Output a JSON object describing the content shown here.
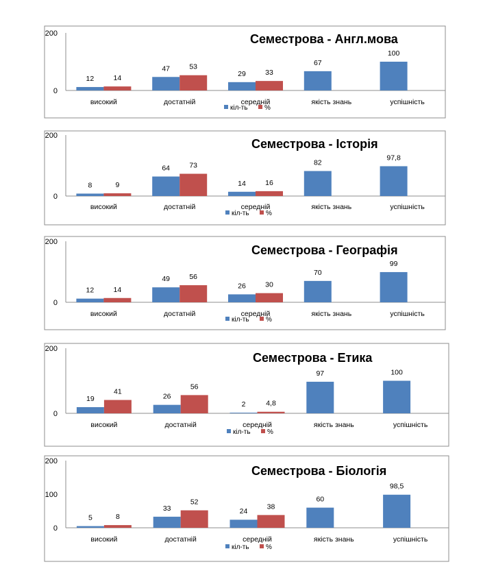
{
  "legend": {
    "series": [
      "кіл-ть",
      "%"
    ]
  },
  "colors": {
    "series": [
      "#4F81BD",
      "#C0504D"
    ]
  },
  "chart_data": [
    {
      "type": "bar",
      "title": "Семестрова  - Англ.мова",
      "categories": [
        "високий",
        "достатній",
        "середній",
        "якість знань",
        "успішність"
      ],
      "series": [
        {
          "name": "кіл-ть",
          "values": [
            12,
            47,
            29,
            67,
            100
          ],
          "labels": [
            "12",
            "47",
            "29",
            "67",
            "100"
          ]
        },
        {
          "name": "%",
          "values": [
            14,
            53,
            33,
            null,
            null
          ],
          "labels": [
            "14",
            "53",
            "33",
            null,
            null
          ]
        }
      ],
      "ylim": [
        0,
        200
      ],
      "yticks": [
        "0",
        "200"
      ]
    },
    {
      "type": "bar",
      "title": "Семестрова  - Історія",
      "categories": [
        "високий",
        "достатній",
        "середній",
        "якість знань",
        "успішність"
      ],
      "series": [
        {
          "name": "кіл-ть",
          "values": [
            8,
            64,
            14,
            82,
            97.8
          ],
          "labels": [
            "8",
            "64",
            "14",
            "82",
            "97,8"
          ]
        },
        {
          "name": "%",
          "values": [
            9,
            73,
            16,
            null,
            null
          ],
          "labels": [
            "9",
            "73",
            "16",
            null,
            null
          ]
        }
      ],
      "ylim": [
        0,
        200
      ],
      "yticks": [
        "0",
        "200"
      ]
    },
    {
      "type": "bar",
      "title": "Семестрова  - Географія",
      "categories": [
        "високий",
        "достатній",
        "середній",
        "якість знань",
        "успішність"
      ],
      "series": [
        {
          "name": "кіл-ть",
          "values": [
            12,
            49,
            26,
            70,
            99
          ],
          "labels": [
            "12",
            "49",
            "26",
            "70",
            "99"
          ]
        },
        {
          "name": "%",
          "values": [
            14,
            56,
            30,
            null,
            null
          ],
          "labels": [
            "14",
            "56",
            "30",
            null,
            null
          ]
        }
      ],
      "ylim": [
        0,
        200
      ],
      "yticks": [
        "0",
        "200"
      ]
    },
    {
      "type": "bar",
      "title": "Семестрова  - Етика",
      "categories": [
        "високий",
        "достатній",
        "середній",
        "якість знань",
        "успішність"
      ],
      "series": [
        {
          "name": "кіл-ть",
          "values": [
            19,
            26,
            2,
            97,
            100
          ],
          "labels": [
            "19",
            "26",
            "2",
            "97",
            "100"
          ]
        },
        {
          "name": "%",
          "values": [
            41,
            56,
            4.8,
            null,
            null
          ],
          "labels": [
            "41",
            "56",
            "4,8",
            null,
            null
          ]
        }
      ],
      "ylim": [
        0,
        200
      ],
      "yticks": [
        "0",
        "200"
      ]
    },
    {
      "type": "bar",
      "title": "Семестрова  - Біологія",
      "categories": [
        "високий",
        "достатній",
        "середній",
        "якість знань",
        "успішність"
      ],
      "series": [
        {
          "name": "кіл-ть",
          "values": [
            5,
            33,
            24,
            60,
            98.5
          ],
          "labels": [
            "5",
            "33",
            "24",
            "60",
            "98,5"
          ]
        },
        {
          "name": "%",
          "values": [
            8,
            52,
            38,
            null,
            null
          ],
          "labels": [
            "8",
            "52",
            "38",
            null,
            null
          ]
        }
      ],
      "ylim": [
        0,
        200
      ],
      "yticks": [
        "0",
        "100",
        "200"
      ]
    }
  ]
}
